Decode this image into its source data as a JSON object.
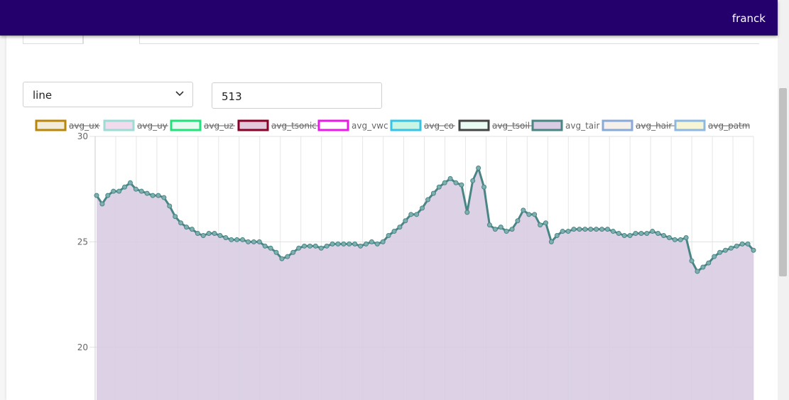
{
  "header": {
    "user": "franck"
  },
  "controls": {
    "chart_type": "line",
    "points": "513"
  },
  "colors": {
    "header_bg": "#23006b",
    "fill": "#d8cce2",
    "line": "#4a8585"
  },
  "legend": [
    {
      "label": "avg_ux",
      "color": "#b8860b",
      "fill": "#f3ecd8",
      "hidden": true
    },
    {
      "label": "avg_uy",
      "color": "#9ddcd6",
      "fill": "#f0dcec",
      "hidden": true
    },
    {
      "label": "avg_uz",
      "color": "#22e07a",
      "fill": "#e9fbf1",
      "hidden": true
    },
    {
      "label": "avg_tsonic",
      "color": "#8b0029",
      "fill": "#e4c9dd",
      "hidden": true
    },
    {
      "label": "avg_vwc",
      "color": "#e81ae8",
      "fill": "#ffffff",
      "hidden": false
    },
    {
      "label": "avg_co",
      "color": "#36c4e6",
      "fill": "#c8f5e4",
      "hidden": true
    },
    {
      "label": "avg_tsoil",
      "color": "#444444",
      "fill": "#e9fbf3",
      "hidden": true
    },
    {
      "label": "avg_tair",
      "color": "#4a8585",
      "fill": "#d8cce2",
      "hidden": false
    },
    {
      "label": "avg_hair",
      "color": "#89a9d6",
      "fill": "#f6f0ec",
      "hidden": true
    },
    {
      "label": "avg_patm",
      "color": "#8eb8e0",
      "fill": "#f6f6d6",
      "hidden": true
    }
  ],
  "chart_data": {
    "type": "area",
    "series": [
      {
        "name": "avg_tair",
        "values": [
          27.2,
          26.8,
          27.2,
          27.4,
          27.4,
          27.6,
          27.8,
          27.5,
          27.4,
          27.3,
          27.2,
          27.2,
          27.1,
          26.7,
          26.2,
          25.9,
          25.7,
          25.6,
          25.4,
          25.3,
          25.4,
          25.4,
          25.3,
          25.2,
          25.1,
          25.1,
          25.1,
          25.0,
          25.0,
          25.0,
          24.8,
          24.7,
          24.5,
          24.2,
          24.3,
          24.5,
          24.7,
          24.8,
          24.8,
          24.8,
          24.7,
          24.8,
          24.9,
          24.9,
          24.9,
          24.9,
          24.9,
          24.8,
          24.9,
          25.0,
          24.9,
          25.0,
          25.3,
          25.5,
          25.7,
          26.0,
          26.3,
          26.3,
          26.6,
          27.0,
          27.3,
          27.6,
          27.8,
          28.0,
          27.8,
          27.7,
          26.4,
          27.9,
          28.5,
          27.6,
          25.8,
          25.6,
          25.7,
          25.5,
          25.6,
          26.0,
          26.5,
          26.3,
          26.3,
          25.8,
          25.9,
          25.0,
          25.3,
          25.5,
          25.5,
          25.6,
          25.6,
          25.6,
          25.6,
          25.6,
          25.6,
          25.6,
          25.5,
          25.4,
          25.3,
          25.3,
          25.4,
          25.4,
          25.4,
          25.5,
          25.4,
          25.3,
          25.2,
          25.1,
          25.1,
          25.2,
          24.1,
          23.6,
          23.8,
          24.0,
          24.3,
          24.5,
          24.6,
          24.7,
          24.8,
          24.9,
          24.9,
          24.6
        ],
        "fill": true
      }
    ],
    "title": "",
    "xlabel": "",
    "ylabel": "",
    "ylim": [
      17.5,
      30
    ],
    "yticks": [
      "30",
      "25",
      "20"
    ],
    "grid": true,
    "legend_position": "top"
  }
}
